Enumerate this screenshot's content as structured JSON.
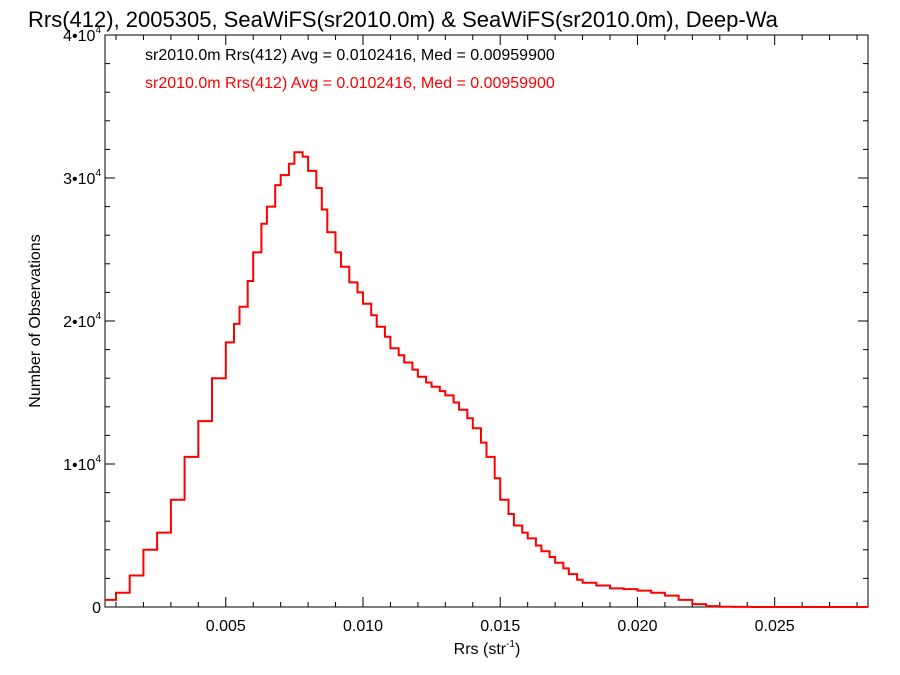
{
  "chart_data": {
    "type": "line",
    "title": "Rrs(412), 2005305, SeaWiFS(sr2010.0m) & SeaWiFS(sr2010.0m), Deep-Wa",
    "xlabel": "Rrs (str",
    "xlabel_sup": "-1",
    "xlabel_tail": ")",
    "ylabel": "Number of Observations",
    "xlim": [
      0.0006,
      0.0284
    ],
    "ylim": [
      0,
      40000
    ],
    "x_ticks": [
      {
        "value": 0.005,
        "label": "0.005"
      },
      {
        "value": 0.01,
        "label": "0.010"
      },
      {
        "value": 0.015,
        "label": "0.015"
      },
      {
        "value": 0.02,
        "label": "0.020"
      },
      {
        "value": 0.025,
        "label": "0.025"
      }
    ],
    "y_ticks": [
      {
        "value": 0,
        "label": "0",
        "exp": ""
      },
      {
        "value": 10000,
        "label": "1•10",
        "exp": "4"
      },
      {
        "value": 20000,
        "label": "2•10",
        "exp": "4"
      },
      {
        "value": 30000,
        "label": "3•10",
        "exp": "4"
      },
      {
        "value": 40000,
        "label": "4•10",
        "exp": "4"
      }
    ],
    "annotations": [
      {
        "text": "sr2010.0m Rrs(412) Avg = 0.0102416, Med = 0.00959900",
        "color": "#000000"
      },
      {
        "text": "sr2010.0m Rrs(412) Avg = 0.0102416, Med = 0.00959900",
        "color": "#ff0000"
      }
    ],
    "series": [
      {
        "color": "#ff0000",
        "x": [
          0.0006,
          0.001,
          0.0015,
          0.002,
          0.0025,
          0.003,
          0.0035,
          0.004,
          0.0045,
          0.005,
          0.0053,
          0.0055,
          0.0058,
          0.006,
          0.0063,
          0.0065,
          0.0068,
          0.007,
          0.0073,
          0.0075,
          0.0078,
          0.008,
          0.0083,
          0.0085,
          0.0087,
          0.009,
          0.0092,
          0.0095,
          0.0098,
          0.01,
          0.0103,
          0.0105,
          0.0108,
          0.011,
          0.0113,
          0.0115,
          0.0118,
          0.012,
          0.0123,
          0.0125,
          0.0128,
          0.013,
          0.0133,
          0.0135,
          0.0138,
          0.014,
          0.0143,
          0.0145,
          0.0148,
          0.015,
          0.0153,
          0.0155,
          0.0158,
          0.016,
          0.0163,
          0.0165,
          0.0168,
          0.017,
          0.0173,
          0.0175,
          0.0178,
          0.018,
          0.0185,
          0.019,
          0.0195,
          0.02,
          0.0205,
          0.021,
          0.0215,
          0.022,
          0.0225,
          0.023,
          0.0235,
          0.024,
          0.0242,
          0.0245,
          0.025,
          0.026,
          0.027,
          0.0284
        ],
        "y": [
          500,
          1000,
          2200,
          4000,
          5200,
          7500,
          10500,
          13000,
          16000,
          18500,
          19800,
          21000,
          22800,
          24800,
          26800,
          28000,
          29500,
          30200,
          31000,
          31800,
          31500,
          30500,
          29300,
          27800,
          26200,
          24800,
          23800,
          22700,
          22000,
          21200,
          20400,
          19600,
          18900,
          18100,
          17600,
          17100,
          16600,
          16100,
          15700,
          15400,
          15100,
          14800,
          14300,
          13800,
          13200,
          12500,
          11500,
          10500,
          9000,
          7500,
          6500,
          5700,
          5200,
          4800,
          4300,
          3900,
          3500,
          3100,
          2700,
          2300,
          1900,
          1700,
          1500,
          1300,
          1250,
          1150,
          1000,
          800,
          500,
          200,
          60,
          20,
          10,
          5,
          0,
          0,
          0,
          0,
          0,
          0
        ]
      }
    ]
  }
}
